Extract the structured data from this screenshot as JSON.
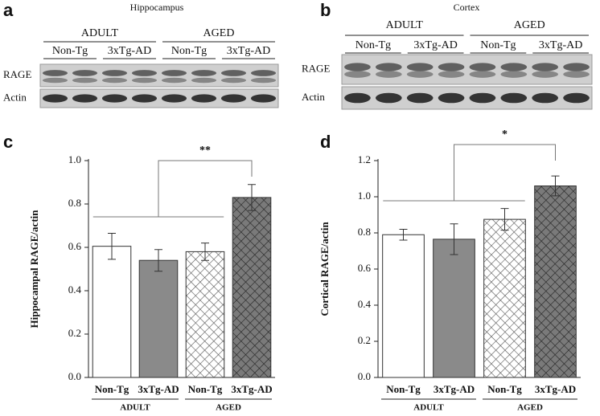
{
  "blots": [
    {
      "panel": "a",
      "title": "Hippocampus",
      "groups": [
        "ADULT",
        "AGED"
      ],
      "lanes": [
        "Non-Tg",
        "3xTg-AD",
        "Non-Tg",
        "3xTg-AD"
      ],
      "rows": [
        "RAGE",
        "Actin"
      ]
    },
    {
      "panel": "b",
      "title": "Cortex",
      "groups": [
        "ADULT",
        "AGED"
      ],
      "lanes": [
        "Non-Tg",
        "3xTg-AD",
        "Non-Tg",
        "3xTg-AD"
      ],
      "rows": [
        "RAGE",
        "Actin"
      ]
    }
  ],
  "chart_data": [
    {
      "type": "bar",
      "panel": "c",
      "ylabel": "Hippocampal RAGE/actin",
      "categories": [
        "Non-Tg",
        "3xTg-AD",
        "Non-Tg",
        "3xTg-AD"
      ],
      "groups": [
        "ADULT",
        "AGED"
      ],
      "values": [
        0.605,
        0.54,
        0.58,
        0.83
      ],
      "errors": [
        0.06,
        0.05,
        0.04,
        0.06
      ],
      "colors": [
        "#ffffff",
        "#8a8a8a",
        "#ffffff",
        "#808080"
      ],
      "hatch": [
        false,
        false,
        true,
        true
      ],
      "ylim": [
        0,
        1.0
      ],
      "yticks": [
        {
          "value": 0,
          "label": "0.0"
        },
        0.2,
        0.4,
        0.6,
        0.8,
        {
          "value": 1.0,
          "label": "1.0"
        }
      ],
      "annotation": "**"
    },
    {
      "type": "bar",
      "panel": "d",
      "ylabel": "Cortical RAGE/actin",
      "categories": [
        "Non-Tg",
        "3xTg-AD",
        "Non-Tg",
        "3xTg-AD"
      ],
      "groups": [
        "ADULT",
        "AGED"
      ],
      "values": [
        0.79,
        0.765,
        0.875,
        1.06
      ],
      "errors": [
        0.03,
        0.085,
        0.06,
        0.055
      ],
      "colors": [
        "#ffffff",
        "#8a8a8a",
        "#ffffff",
        "#808080"
      ],
      "hatch": [
        false,
        false,
        true,
        true
      ],
      "ylim": [
        0,
        1.2
      ],
      "yticks": [
        {
          "value": 0,
          "label": "0.0"
        },
        0.2,
        0.4,
        0.6,
        0.8,
        {
          "value": 1.0,
          "label": "1.0"
        },
        1.2
      ],
      "annotation": "*"
    }
  ]
}
